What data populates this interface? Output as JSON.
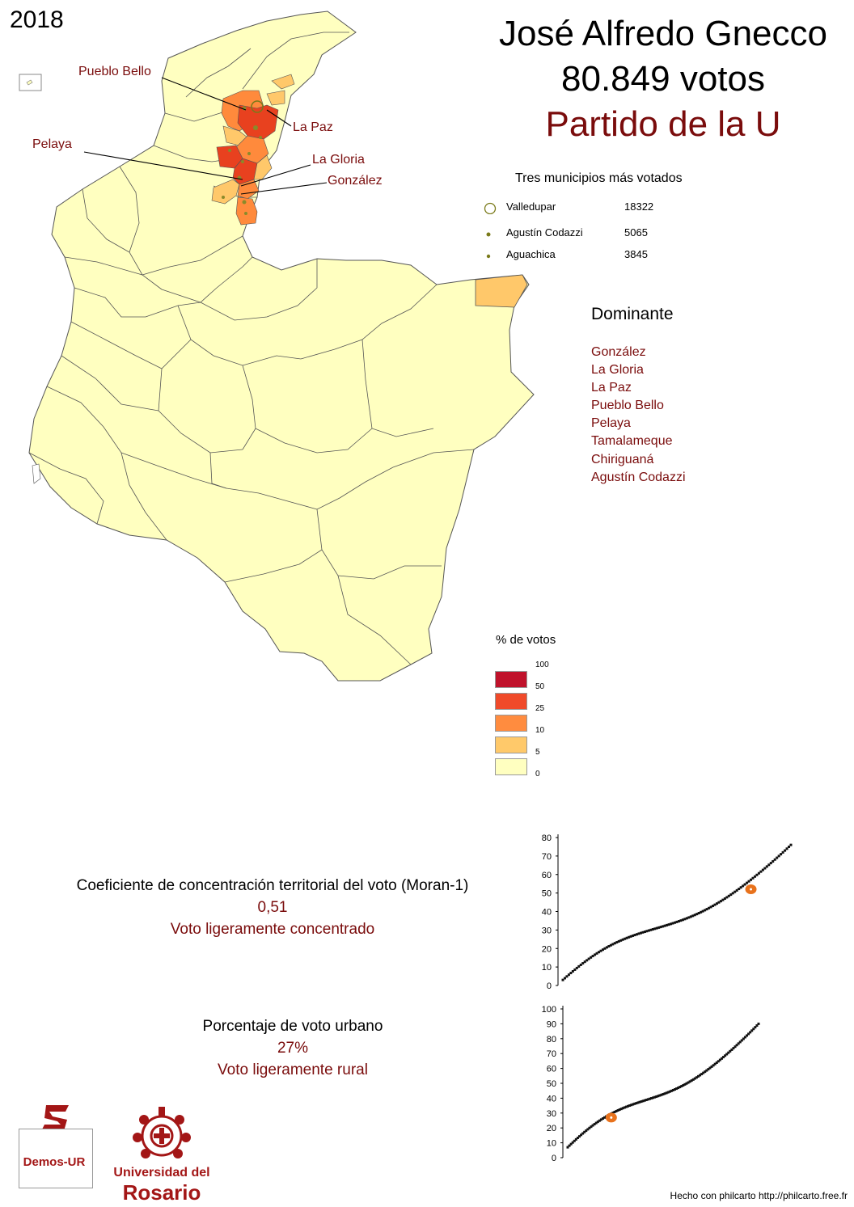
{
  "year": "2018",
  "title": {
    "candidate": "José Alfredo Gnecco",
    "votes": "80.849 votos",
    "party": "Partido de la U"
  },
  "map": {
    "labels": [
      "Pueblo Bello",
      "La Paz",
      "Pelaya",
      "La Gloria",
      "González"
    ],
    "colors": {
      "base": "#ffffc0",
      "border": "#555555",
      "high": "#e8411f",
      "mid": "#ff8a3c",
      "low": "#ffc86a"
    }
  },
  "top_municipalities": {
    "title": "Tres municipios más votados",
    "items": [
      {
        "name": "Valledupar",
        "value": "18322"
      },
      {
        "name": "Agustín Codazzi",
        "value": "5065"
      },
      {
        "name": "Aguachica",
        "value": "3845"
      }
    ]
  },
  "dominant": {
    "title": "Dominante",
    "items": [
      "González",
      "La Gloria",
      "La Paz",
      "Pueblo Bello",
      "Pelaya",
      "Tamalameque",
      "Chiriguaná",
      "Agustín Codazzi"
    ]
  },
  "legend": {
    "title": "% de votos",
    "ticks": [
      "100",
      "50",
      "25",
      "10",
      "5",
      "0"
    ],
    "colors": [
      "#c0122b",
      "#f04a2a",
      "#ff8c3f",
      "#ffc96a",
      "#ffffc0"
    ]
  },
  "moran": {
    "label": "Coeficiente de concentración territorial del voto (Moran-1)",
    "value": "0,51",
    "description": "Voto ligeramente concentrado"
  },
  "urban": {
    "label": "Porcentaje de voto urbano",
    "value": "27%",
    "description": "Voto ligeramente rural"
  },
  "chart_data": [
    {
      "type": "scatter",
      "title": "",
      "xlabel": "",
      "ylabel": "",
      "ylim": [
        0,
        80
      ],
      "yticks": [
        "0",
        "10",
        "20",
        "30",
        "40",
        "50",
        "60",
        "70",
        "80"
      ],
      "n_points": 115,
      "y_min": 3,
      "y_max": 76,
      "highlight_y": 52,
      "highlight_rank": 95
    },
    {
      "type": "scatter",
      "title": "",
      "xlabel": "",
      "ylabel": "",
      "ylim": [
        0,
        100
      ],
      "yticks": [
        "0",
        "10",
        "20",
        "30",
        "40",
        "50",
        "60",
        "70",
        "80",
        "90",
        "100"
      ],
      "n_points": 115,
      "y_min": 7,
      "y_max": 90,
      "highlight_y": 27,
      "highlight_rank": 27
    }
  ],
  "footer": {
    "credit": "Hecho con philcarto http://philcarto.free.fr",
    "demos": "Demos-UR",
    "university_line1": "Universidad del",
    "university_line2": "Rosario"
  }
}
